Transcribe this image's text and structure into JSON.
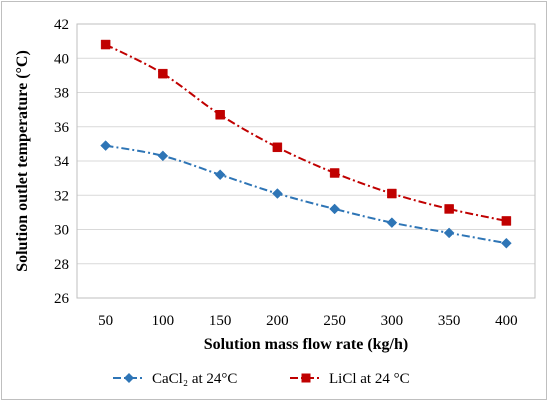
{
  "chart_data": {
    "type": "line",
    "title": "",
    "xlabel": "Solution mass flow rate (kg/h)",
    "ylabel": "Solution outlet temperature (°C)",
    "categories": [
      "50",
      "100",
      "150",
      "200",
      "250",
      "300",
      "350",
      "400"
    ],
    "ylim": [
      26,
      42
    ],
    "yticks": [
      26,
      28,
      30,
      32,
      34,
      36,
      38,
      40,
      42
    ],
    "grid": true,
    "legend_position": "bottom",
    "series": [
      {
        "name": "CaCl₂ at 24°C",
        "values": [
          34.9,
          34.3,
          33.2,
          32.1,
          31.2,
          30.4,
          29.8,
          29.2
        ],
        "color": "#2e75b6",
        "marker": "diamond",
        "line_style": "dash-dot"
      },
      {
        "name": "LiCl at 24 °C",
        "values": [
          40.8,
          39.1,
          36.7,
          34.8,
          33.3,
          32.1,
          31.2,
          30.5
        ],
        "color": "#c00000",
        "marker": "square",
        "line_style": "dash-dot"
      }
    ]
  }
}
